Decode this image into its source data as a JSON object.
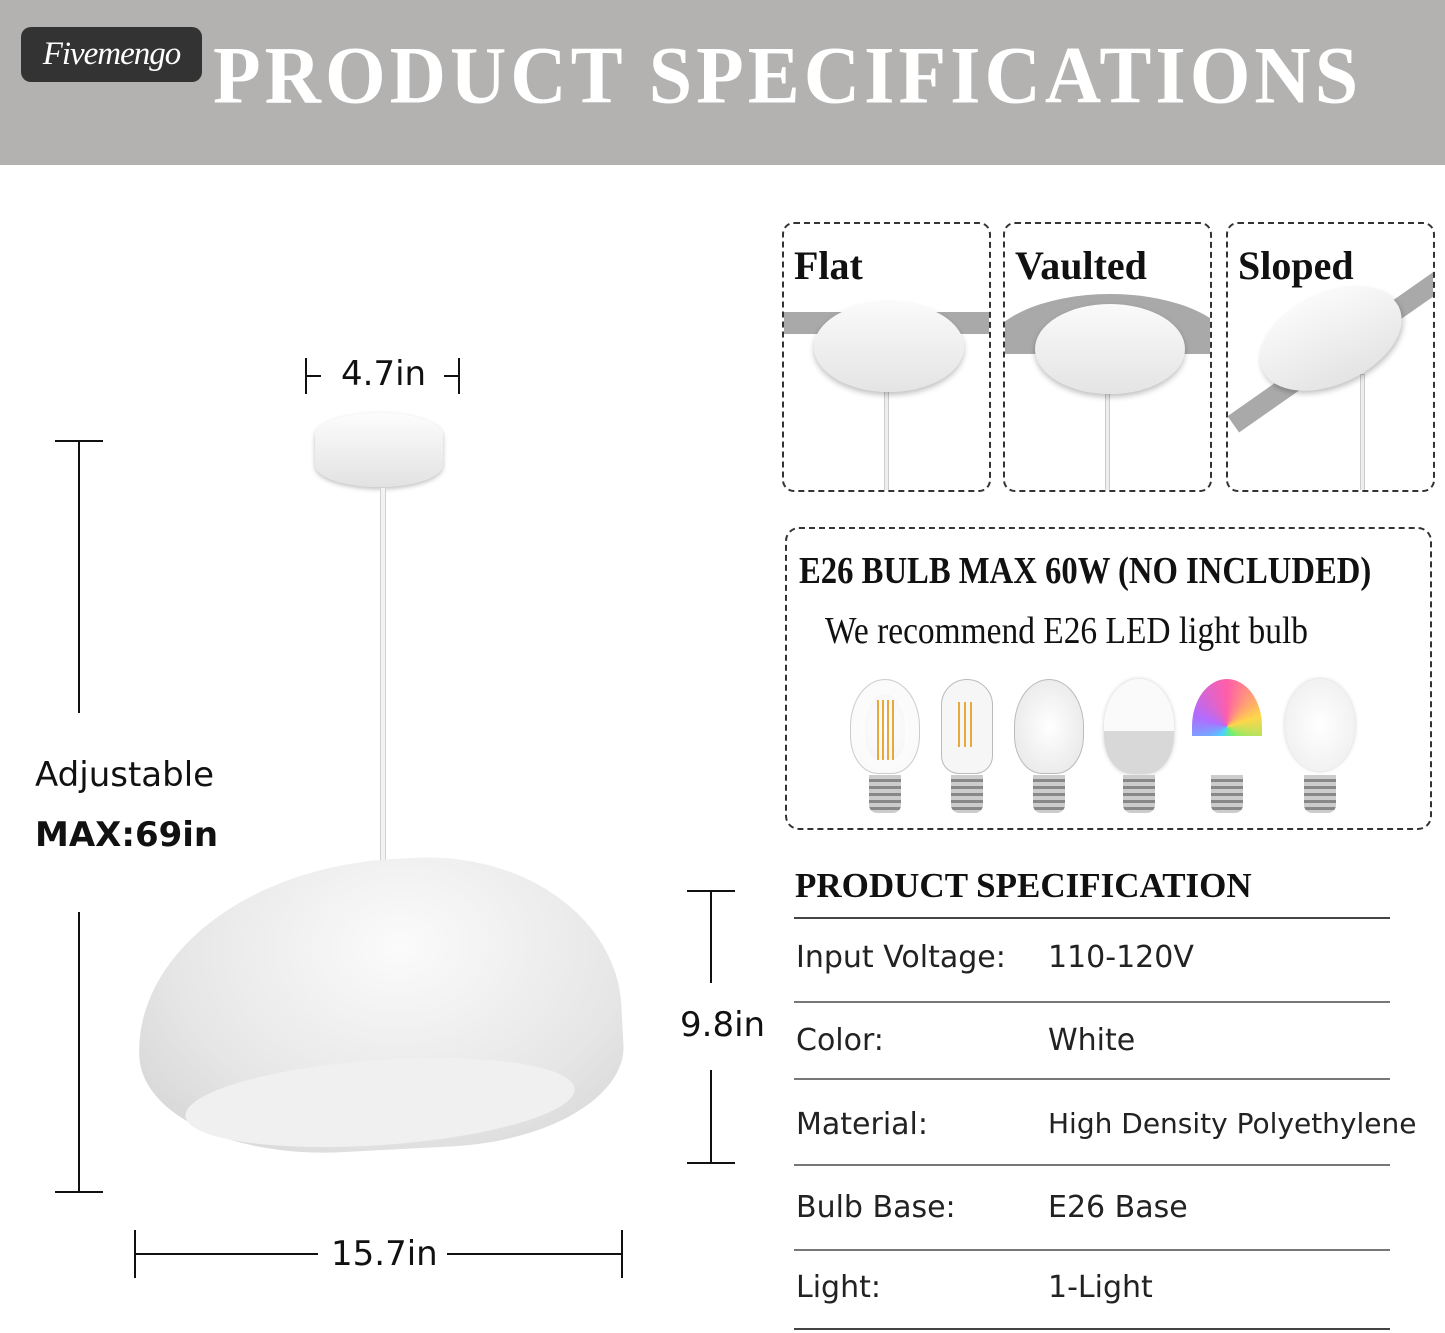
{
  "header": {
    "logo": "Fivemengo",
    "title": "PRODUCT SPECIFICATIONS",
    "background": "#b3b2b1"
  },
  "dimensions": {
    "canopy_width": "4.7in",
    "adjustable_label": "Adjustable",
    "max_length": "MAX:69in",
    "shade_height": "9.8in",
    "shade_width": "15.7in"
  },
  "mounts": [
    {
      "label": "Flat"
    },
    {
      "label": "Vaulted"
    },
    {
      "label": "Sloped"
    }
  ],
  "bulb": {
    "title": "E26 BULB MAX 60W (NO INCLUDED)",
    "subtitle": "We recommend E26 LED light bulb",
    "types": [
      "filament-a19-bulb",
      "filament-t-bulb",
      "clear-incandescent-bulb",
      "led-a19-bulb",
      "rgb-led-bulb",
      "frosted-globe-bulb"
    ]
  },
  "spec": {
    "title": "PRODUCT SPECIFICATION",
    "rows": [
      {
        "label": "Input Voltage:",
        "value": "110-120V"
      },
      {
        "label": "Color:",
        "value": "White"
      },
      {
        "label": "Material:",
        "value": "High Density Polyethylene"
      },
      {
        "label": "Bulb Base:",
        "value": "E26 Base"
      },
      {
        "label": "Light:",
        "value": "1-Light"
      }
    ]
  }
}
